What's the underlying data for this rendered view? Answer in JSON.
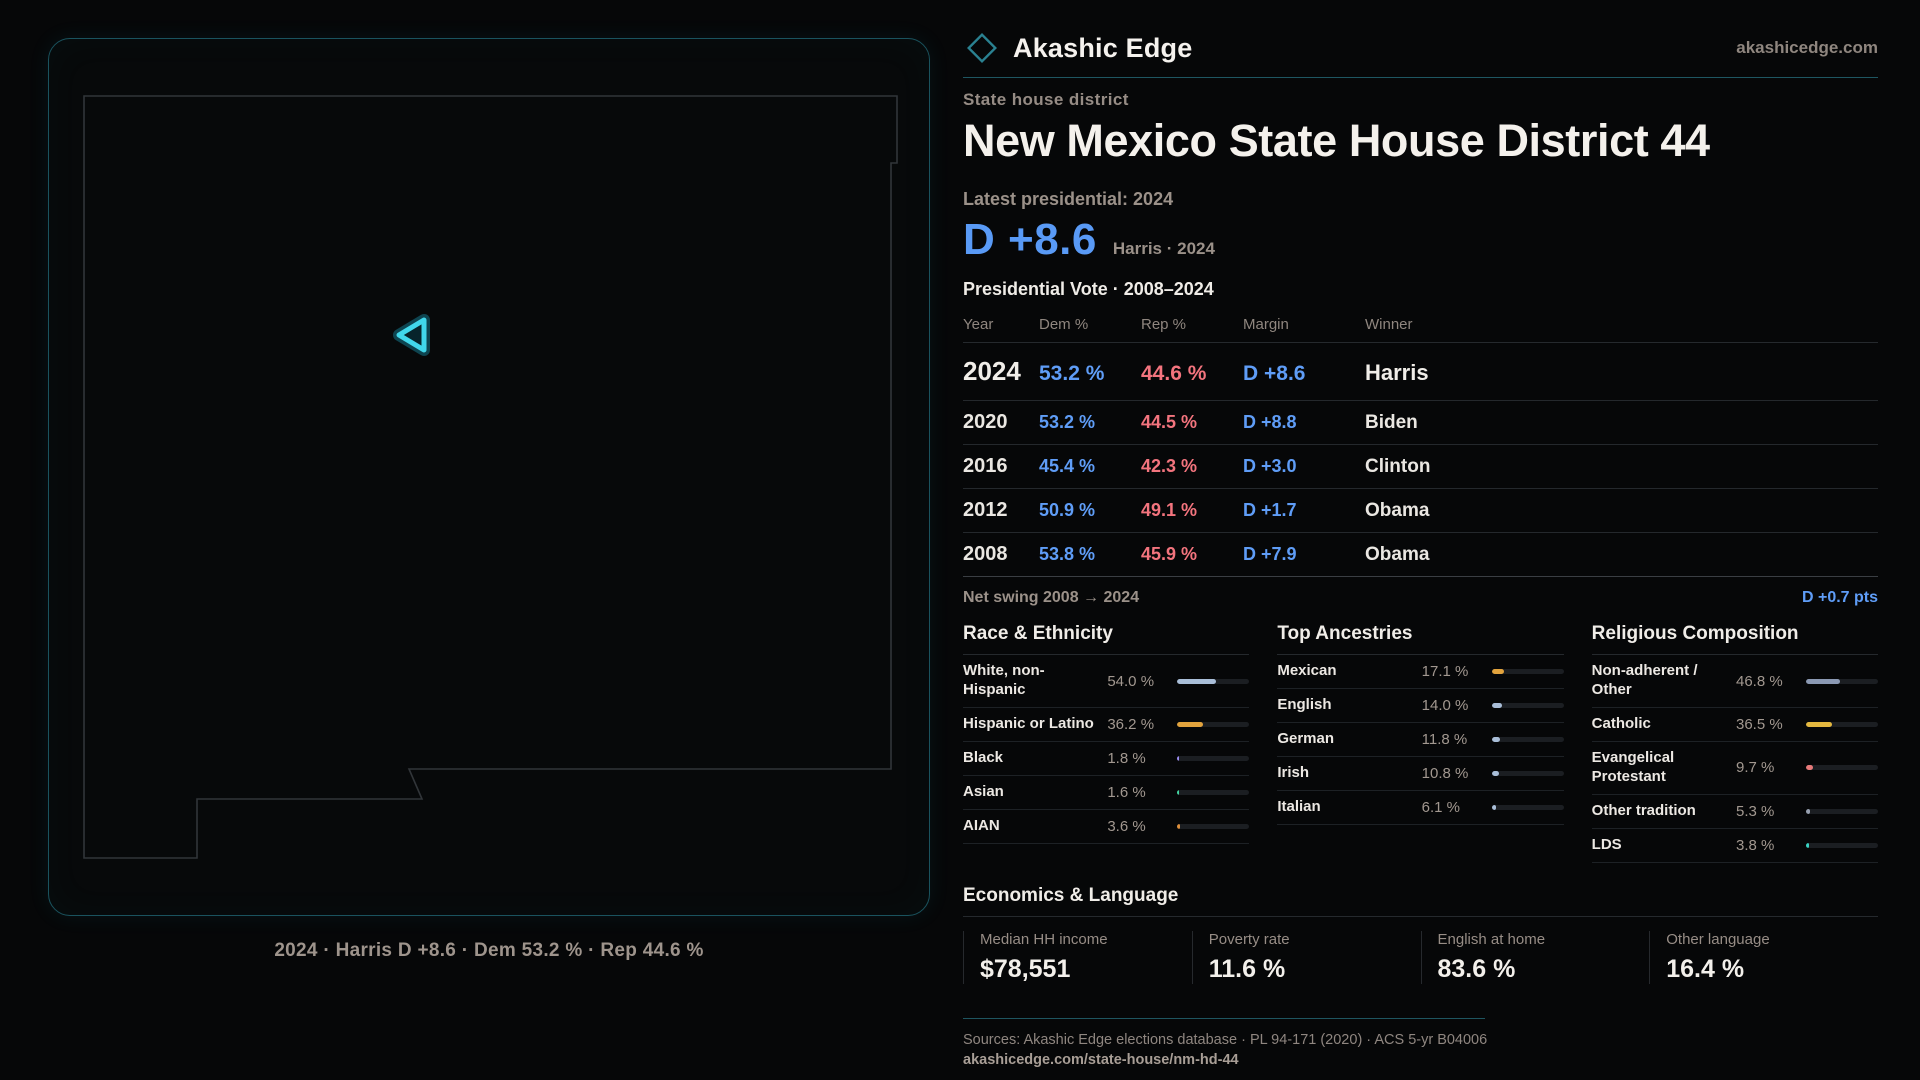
{
  "brand": {
    "name": "Akashic Edge",
    "site": "akashicedge.com",
    "logo_icon": "diamond-outline-icon",
    "accent_teal": "#2a8191"
  },
  "map": {
    "region": "New Mexico state outline",
    "marker": "district-triangle-marker",
    "marker_color": "#41d7eb",
    "caption": "2024 · Harris D +8.6 · Dem 53.2 % · Rep 44.6 %"
  },
  "header": {
    "eyebrow": "State house district",
    "title": "New Mexico State House District 44",
    "latest_label": "Latest presidential: 2024",
    "headline_margin": "D +8.6",
    "headline_sub": "Harris · 2024",
    "margin_color": "#599af6"
  },
  "table": {
    "title": "Presidential Vote · 2008–2024",
    "columns": [
      "Year",
      "Dem %",
      "Rep %",
      "Margin",
      "Winner"
    ],
    "rows": [
      {
        "year": "2024",
        "dem": "53.2 %",
        "rep": "44.6 %",
        "margin": "D +8.6",
        "winner": "Harris"
      },
      {
        "year": "2020",
        "dem": "53.2 %",
        "rep": "44.5 %",
        "margin": "D +8.8",
        "winner": "Biden"
      },
      {
        "year": "2016",
        "dem": "45.4 %",
        "rep": "42.3 %",
        "margin": "D +3.0",
        "winner": "Clinton"
      },
      {
        "year": "2012",
        "dem": "50.9 %",
        "rep": "49.1 %",
        "margin": "D +1.7",
        "winner": "Obama"
      },
      {
        "year": "2008",
        "dem": "53.8 %",
        "rep": "45.9 %",
        "margin": "D +7.9",
        "winner": "Obama"
      }
    ],
    "dem_color": "#5f9df7",
    "rep_color": "#f3747e",
    "net_swing_label": "Net swing 2008 → 2024",
    "net_swing_value": "D +0.7 pts"
  },
  "demographics": {
    "sections": [
      {
        "title": "Race & Ethnicity",
        "rows": [
          {
            "label": "White, non-Hispanic",
            "value": "54.0 %",
            "pct": 54.0,
            "color": "#a9bed8"
          },
          {
            "label": "Hispanic or Latino",
            "value": "36.2 %",
            "pct": 36.2,
            "color": "#e2a33d"
          },
          {
            "label": "Black",
            "value": "1.8 %",
            "pct": 1.8,
            "color": "#9c8df2"
          },
          {
            "label": "Asian",
            "value": "1.6 %",
            "pct": 1.6,
            "color": "#43d6a2"
          },
          {
            "label": "AIAN",
            "value": "3.6 %",
            "pct": 3.6,
            "color": "#de8f3b"
          }
        ]
      },
      {
        "title": "Top Ancestries",
        "rows": [
          {
            "label": "Mexican",
            "value": "17.1 %",
            "pct": 17.1,
            "color": "#e2a33d"
          },
          {
            "label": "English",
            "value": "14.0 %",
            "pct": 14.0,
            "color": "#a9bed8"
          },
          {
            "label": "German",
            "value": "11.8 %",
            "pct": 11.8,
            "color": "#a9bed8"
          },
          {
            "label": "Irish",
            "value": "10.8 %",
            "pct": 10.8,
            "color": "#a9bed8"
          },
          {
            "label": "Italian",
            "value": "6.1 %",
            "pct": 6.1,
            "color": "#a9bed8"
          }
        ]
      },
      {
        "title": "Religious Composition",
        "rows": [
          {
            "label": "Non-adherent / Other",
            "value": "46.8 %",
            "pct": 46.8,
            "color": "#8b99b3"
          },
          {
            "label": "Catholic",
            "value": "36.5 %",
            "pct": 36.5,
            "color": "#e4b83f"
          },
          {
            "label": "Evangelical Protestant",
            "value": "9.7 %",
            "pct": 9.7,
            "color": "#e77a7a"
          },
          {
            "label": "Other tradition",
            "value": "5.3 %",
            "pct": 5.3,
            "color": "#97a0b0"
          },
          {
            "label": "LDS",
            "value": "3.8 %",
            "pct": 3.8,
            "color": "#39d3c3"
          }
        ]
      }
    ]
  },
  "economics": {
    "title": "Economics & Language",
    "stats": [
      {
        "label": "Median HH income",
        "value": "$78,551"
      },
      {
        "label": "Poverty rate",
        "value": "11.6 %"
      },
      {
        "label": "English at home",
        "value": "83.6 %"
      },
      {
        "label": "Other language",
        "value": "16.4 %"
      }
    ]
  },
  "footer": {
    "sources": "Sources: Akashic Edge elections database · PL 94-171 (2020) · ACS 5-yr B04006",
    "permalink": "akashicedge.com/state-house/nm-hd-44"
  }
}
